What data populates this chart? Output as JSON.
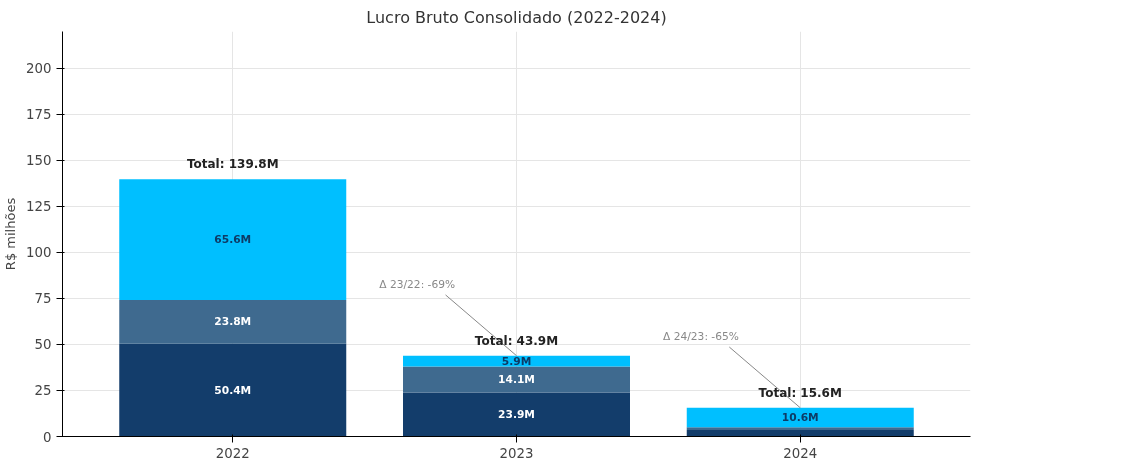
{
  "chart_data": {
    "type": "bar",
    "title": "Lucro Bruto Consolidado (2022-2024)",
    "ylabel": "R$ milhões",
    "categories": [
      "2022",
      "2023",
      "2024"
    ],
    "stacked": true,
    "series": [
      {
        "color": "#133d6b",
        "values": [
          50.4,
          23.9,
          3.5
        ],
        "value_labels": [
          "50.4M",
          "23.9M",
          null
        ]
      },
      {
        "color": "#3f6a8f",
        "values": [
          23.8,
          14.1,
          1.5
        ],
        "value_labels": [
          "23.8M",
          "14.1M",
          null
        ]
      },
      {
        "color": "#00bfff",
        "values": [
          65.6,
          5.9,
          10.6
        ],
        "value_labels": [
          "65.6M",
          "5.9M",
          "10.6M"
        ]
      }
    ],
    "totals": [
      "Total: 139.8M",
      "Total: 43.9M",
      "Total: 15.6M"
    ],
    "annotations": [
      {
        "text": "Δ 23/22: -69%",
        "x": "2023",
        "y": 43.9
      },
      {
        "text": "Δ 24/23: -65%",
        "x": "2024",
        "y": 15.6
      }
    ],
    "ylim": [
      0,
      220
    ],
    "yticks": [
      0,
      25,
      50,
      75,
      100,
      125,
      150,
      175,
      200
    ],
    "grid": true
  }
}
